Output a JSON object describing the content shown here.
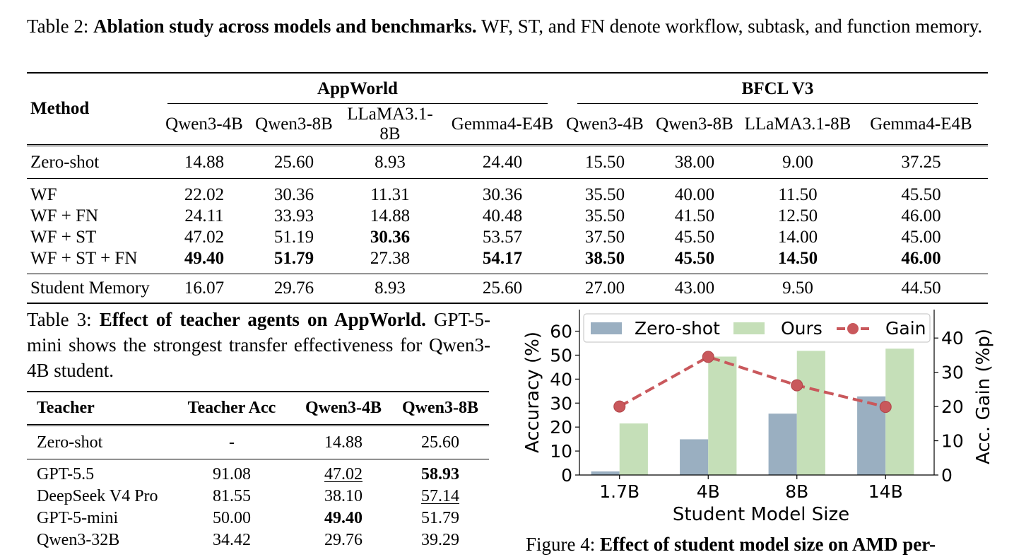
{
  "table2": {
    "caption_prefix": "Table 2: ",
    "caption_bold": "Ablation study across models and benchmarks.",
    "caption_rest": " WF, ST, and FN denote workflow, subtask, and function memory.",
    "method_header": "Method",
    "groups": [
      "AppWorld",
      "BFCL V3"
    ],
    "models": [
      "Qwen3-4B",
      "Qwen3-8B",
      "LLaMA3.1-8B",
      "Gemma4-E4B",
      "Qwen3-4B",
      "Qwen3-8B",
      "LLaMA3.1-8B",
      "Gemma4-E4B"
    ],
    "rows": [
      {
        "label": "Zero-shot",
        "values": [
          "14.88",
          "25.60",
          "8.93",
          "24.40",
          "15.50",
          "38.00",
          "9.00",
          "37.25"
        ],
        "bold": []
      },
      {
        "label": "WF",
        "values": [
          "22.02",
          "30.36",
          "11.31",
          "30.36",
          "35.50",
          "40.00",
          "11.50",
          "45.50"
        ],
        "bold": []
      },
      {
        "label": "WF + FN",
        "values": [
          "24.11",
          "33.93",
          "14.88",
          "40.48",
          "35.50",
          "41.50",
          "12.50",
          "46.00"
        ],
        "bold": []
      },
      {
        "label": "WF + ST",
        "values": [
          "47.02",
          "51.19",
          "30.36",
          "53.57",
          "37.50",
          "45.50",
          "14.00",
          "45.00"
        ],
        "bold": [
          2
        ]
      },
      {
        "label": "WF + ST + FN",
        "values": [
          "49.40",
          "51.79",
          "27.38",
          "54.17",
          "38.50",
          "45.50",
          "14.50",
          "46.00"
        ],
        "bold": [
          0,
          1,
          3,
          4,
          5,
          6,
          7
        ]
      },
      {
        "label": "Student Memory",
        "values": [
          "16.07",
          "29.76",
          "8.93",
          "25.60",
          "27.00",
          "43.00",
          "9.50",
          "44.50"
        ],
        "bold": []
      }
    ]
  },
  "table3": {
    "caption_prefix": "Table 3: ",
    "caption_bold": "Effect of teacher agents on AppWorld.",
    "caption_rest": " GPT-5-mini shows the strongest transfer effectiveness for Qwen3-4B student.",
    "headers": [
      "Teacher",
      "Teacher Acc",
      "Qwen3-4B",
      "Qwen3-8B"
    ],
    "rows": [
      {
        "label": "Zero-shot",
        "values": [
          "-",
          "14.88",
          "25.60"
        ],
        "bold": [],
        "underline": []
      },
      {
        "label": "GPT-5.5",
        "values": [
          "91.08",
          "47.02",
          "58.93"
        ],
        "bold": [
          2
        ],
        "underline": [
          1
        ]
      },
      {
        "label": "DeepSeek V4 Pro",
        "values": [
          "81.55",
          "38.10",
          "57.14"
        ],
        "bold": [],
        "underline": [
          2
        ]
      },
      {
        "label": "GPT-5-mini",
        "values": [
          "50.00",
          "49.40",
          "51.79"
        ],
        "bold": [
          1
        ],
        "underline": []
      },
      {
        "label": "Qwen3-32B",
        "values": [
          "34.42",
          "29.76",
          "39.29"
        ],
        "bold": [],
        "underline": []
      }
    ]
  },
  "figure4": {
    "caption_prefix": "Figure 4: ",
    "caption_bold": "Effect of student model size on AMD per-",
    "colors": {
      "zero_shot": "#9aafc1",
      "ours": "#c5dfb8",
      "gain": "#c9585c"
    }
  },
  "chart_data": {
    "type": "bar",
    "categories": [
      "1.7B",
      "4B",
      "8B",
      "14B"
    ],
    "xlabel": "Student Model Size",
    "ylabel": "Accuracy (%)",
    "y2label": "Acc. Gain (%p)",
    "ylim": [
      0,
      69
    ],
    "yticks": [
      0,
      10,
      20,
      30,
      40,
      50,
      60
    ],
    "y2lim": [
      0,
      48.3
    ],
    "y2ticks": [
      0,
      10,
      20,
      30,
      40
    ],
    "series": [
      {
        "name": "Zero-shot",
        "kind": "bar",
        "axis": "left",
        "values": [
          1.5,
          14.9,
          25.6,
          32.8
        ]
      },
      {
        "name": "Ours",
        "kind": "bar",
        "axis": "left",
        "values": [
          21.5,
          49.4,
          51.8,
          52.7
        ]
      },
      {
        "name": "Gain",
        "kind": "line",
        "axis": "right",
        "values": [
          20.0,
          34.5,
          26.2,
          19.9
        ]
      }
    ],
    "legend": "top",
    "grid": false
  }
}
